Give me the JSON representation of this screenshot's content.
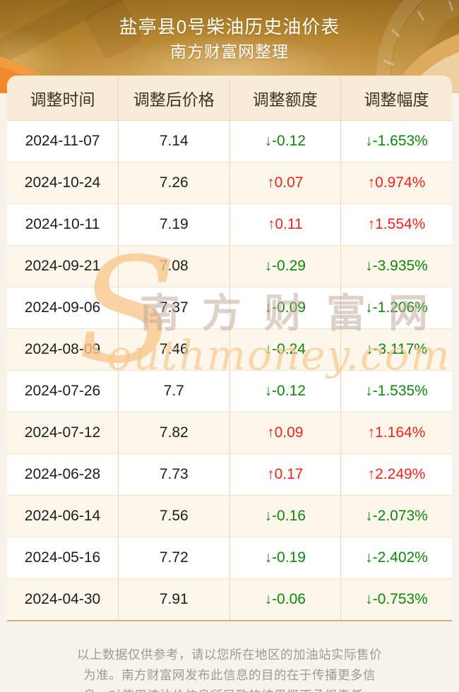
{
  "header": {
    "title": "盐亭县0号柴油历史油价表",
    "subtitle": "南方财富网整理"
  },
  "table": {
    "columns": [
      "调整时间",
      "调整后价格",
      "调整额度",
      "调整幅度"
    ],
    "rows": [
      {
        "date": "2024-11-07",
        "price": "7.14",
        "change": "↓-0.12",
        "percent": "↓-1.653%",
        "direction": "down"
      },
      {
        "date": "2024-10-24",
        "price": "7.26",
        "change": "↑0.07",
        "percent": "↑0.974%",
        "direction": "up"
      },
      {
        "date": "2024-10-11",
        "price": "7.19",
        "change": "↑0.11",
        "percent": "↑1.554%",
        "direction": "up"
      },
      {
        "date": "2024-09-21",
        "price": "7.08",
        "change": "↓-0.29",
        "percent": "↓-3.935%",
        "direction": "down"
      },
      {
        "date": "2024-09-06",
        "price": "7.37",
        "change": "↓-0.09",
        "percent": "↓-1.206%",
        "direction": "down"
      },
      {
        "date": "2024-08-09",
        "price": "7.46",
        "change": "↓-0.24",
        "percent": "↓-3.117%",
        "direction": "down"
      },
      {
        "date": "2024-07-26",
        "price": "7.7",
        "change": "↓-0.12",
        "percent": "↓-1.535%",
        "direction": "down"
      },
      {
        "date": "2024-07-12",
        "price": "7.82",
        "change": "↑0.09",
        "percent": "↑1.164%",
        "direction": "up"
      },
      {
        "date": "2024-06-28",
        "price": "7.73",
        "change": "↑0.17",
        "percent": "↑2.249%",
        "direction": "up"
      },
      {
        "date": "2024-06-14",
        "price": "7.56",
        "change": "↓-0.16",
        "percent": "↓-2.073%",
        "direction": "down"
      },
      {
        "date": "2024-05-16",
        "price": "7.72",
        "change": "↓-0.19",
        "percent": "↓-2.402%",
        "direction": "down"
      },
      {
        "date": "2024-04-30",
        "price": "7.91",
        "change": "↓-0.06",
        "percent": "↓-0.753%",
        "direction": "down"
      }
    ]
  },
  "watermark": {
    "initial": "S",
    "cn": "南方财富网",
    "en": "outhmoney.com"
  },
  "footer": {
    "lines": [
      "以上数据仅供参考，请以您所在地区的加油站实际售价",
      "为准。南方财富网发布此信息的目的在于传播更多信",
      "息，对使用该油价信息所导致的结果概不承担责任。"
    ]
  },
  "colors": {
    "up": "#f3241b",
    "down": "#0e860e",
    "accent_orange": "#ee8a2c",
    "header_gold": "#b5852f",
    "header_row_bg": "#f9ecd6",
    "alt_row_bg": "#fdf6ea"
  }
}
